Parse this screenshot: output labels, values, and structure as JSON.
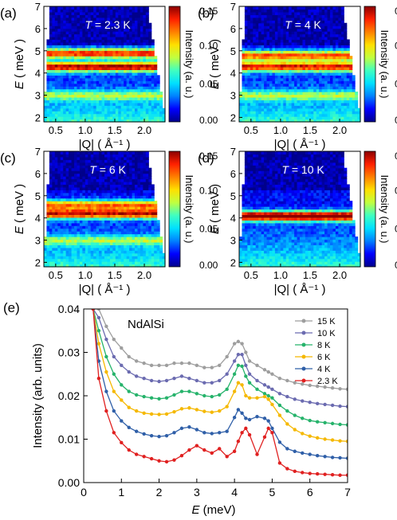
{
  "figure": {
    "heatmap_panels": [
      {
        "label": "(a)",
        "temperature": "2.3 K"
      },
      {
        "label": "(b)",
        "temperature": "4 K"
      },
      {
        "label": "(c)",
        "temperature": "6 K"
      },
      {
        "label": "(d)",
        "temperature": "10 K"
      }
    ],
    "heatmap_common": {
      "temperature_symbol": "T",
      "y_axis_symbol": "E",
      "y_axis_unit": " ( meV )",
      "x_axis_label": "|Q| ( Å⁻¹ )",
      "y_ticks": [
        "2",
        "3",
        "4",
        "5",
        "6",
        "7"
      ],
      "x_ticks": [
        "0.5",
        "1.0",
        "1.5",
        "2.0"
      ],
      "colorbar_label": "Intensity (a. u.)",
      "colorbar_ticks": [
        "0.15",
        "0.10",
        "0.05",
        "0.00"
      ],
      "colorscale": [
        "#00008b",
        "#0000ff",
        "#0080ff",
        "#00e0ff",
        "#40ffc0",
        "#c0ff40",
        "#ffe000",
        "#ff8000",
        "#ff2000",
        "#8b0000"
      ]
    },
    "line_panel": {
      "label": "(e)",
      "sample": "NdAlSi",
      "x_axis_symbol": "E",
      "x_axis_unit": " (meV)",
      "y_axis_label": "Intensity (arb. units)",
      "x_ticks": [
        "0",
        "1",
        "2",
        "3",
        "4",
        "5",
        "6",
        "7"
      ],
      "y_ticks": [
        "0.00",
        "0.01",
        "0.02",
        "0.03",
        "0.04"
      ]
    }
  },
  "chart_data": [
    {
      "type": "heatmap",
      "title": "T = 2.3 K",
      "xlabel": "|Q| ( Å⁻¹ )",
      "ylabel": "E ( meV )",
      "xlim": [
        0.3,
        2.35
      ],
      "ylim": [
        1.8,
        7.0
      ],
      "zlim": [
        0.0,
        0.15
      ],
      "bands": [
        {
          "E": 4.3,
          "intensity": 0.13
        },
        {
          "E": 4.9,
          "intensity": 0.12
        },
        {
          "E": 3.0,
          "intensity": 0.05
        }
      ]
    },
    {
      "type": "heatmap",
      "title": "T = 4 K",
      "xlabel": "|Q| ( Å⁻¹ )",
      "ylabel": "E ( meV )",
      "xlim": [
        0.3,
        2.35
      ],
      "ylim": [
        1.8,
        7.0
      ],
      "zlim": [
        0.0,
        0.15
      ],
      "bands": [
        {
          "E": 4.3,
          "intensity": 0.12
        },
        {
          "E": 4.8,
          "intensity": 0.11
        },
        {
          "E": 3.0,
          "intensity": 0.05
        }
      ]
    },
    {
      "type": "heatmap",
      "title": "T = 6 K",
      "xlabel": "|Q| ( Å⁻¹ )",
      "ylabel": "E ( meV )",
      "xlim": [
        0.3,
        2.35
      ],
      "ylim": [
        1.8,
        7.0
      ],
      "zlim": [
        0.0,
        0.15
      ],
      "bands": [
        {
          "E": 4.2,
          "intensity": 0.12
        },
        {
          "E": 4.6,
          "intensity": 0.1
        },
        {
          "E": 3.0,
          "intensity": 0.05
        }
      ]
    },
    {
      "type": "heatmap",
      "title": "T = 10 K",
      "xlabel": "|Q| ( Å⁻¹ )",
      "ylabel": "E ( meV )",
      "xlim": [
        0.3,
        2.35
      ],
      "ylim": [
        1.8,
        7.0
      ],
      "zlim": [
        0.0,
        0.15
      ],
      "bands": [
        {
          "E": 4.1,
          "intensity": 0.15
        }
      ]
    },
    {
      "type": "line",
      "title": "NdAlSi",
      "xlabel": "E (meV)",
      "ylabel": "Intensity (arb. units)",
      "xlim": [
        0,
        7
      ],
      "ylim": [
        0,
        0.04
      ],
      "legend": "top-right",
      "x": [
        0.25,
        0.4,
        0.6,
        0.8,
        1.0,
        1.2,
        1.4,
        1.6,
        1.8,
        2.0,
        2.2,
        2.4,
        2.6,
        2.8,
        3.0,
        3.2,
        3.4,
        3.6,
        3.8,
        4.0,
        4.1,
        4.2,
        4.3,
        4.4,
        4.6,
        4.8,
        4.9,
        5.0,
        5.2,
        5.4,
        5.6,
        5.8,
        6.0,
        6.2,
        6.4,
        6.6,
        6.8,
        7.0
      ],
      "series": [
        {
          "name": "15 K",
          "color": "#9e9e9e",
          "values": [
            0.04,
            0.04,
            0.036,
            0.033,
            0.031,
            0.029,
            0.028,
            0.0275,
            0.027,
            0.027,
            0.027,
            0.0275,
            0.0275,
            0.0275,
            0.027,
            0.0265,
            0.0265,
            0.027,
            0.029,
            0.032,
            0.0325,
            0.032,
            0.03,
            0.028,
            0.027,
            0.026,
            0.0255,
            0.025,
            0.024,
            0.0235,
            0.023,
            0.0227,
            0.0224,
            0.0222,
            0.022,
            0.0218,
            0.0216,
            0.0215
          ]
        },
        {
          "name": "10 K",
          "color": "#6b6bb0",
          "values": [
            0.04,
            0.038,
            0.033,
            0.029,
            0.027,
            0.0255,
            0.0245,
            0.024,
            0.0235,
            0.0233,
            0.0235,
            0.024,
            0.0245,
            0.024,
            0.0235,
            0.023,
            0.023,
            0.0235,
            0.025,
            0.028,
            0.0295,
            0.0295,
            0.027,
            0.025,
            0.0235,
            0.0225,
            0.022,
            0.0215,
            0.0205,
            0.0198,
            0.0192,
            0.0188,
            0.0185,
            0.0182,
            0.018,
            0.0178,
            0.0176,
            0.0175
          ]
        },
        {
          "name": "8 K",
          "color": "#26b36b",
          "values": [
            0.04,
            0.035,
            0.029,
            0.025,
            0.0225,
            0.021,
            0.0202,
            0.0198,
            0.0195,
            0.0193,
            0.0195,
            0.0202,
            0.021,
            0.021,
            0.0205,
            0.02,
            0.0198,
            0.0202,
            0.0215,
            0.025,
            0.027,
            0.0268,
            0.0245,
            0.023,
            0.0215,
            0.0205,
            0.02,
            0.0195,
            0.0178,
            0.0165,
            0.0155,
            0.0148,
            0.0143,
            0.014,
            0.0138,
            0.0136,
            0.0134,
            0.0133
          ]
        },
        {
          "name": "6 K",
          "color": "#f5b800",
          "values": [
            0.04,
            0.032,
            0.0255,
            0.021,
            0.019,
            0.0173,
            0.0165,
            0.016,
            0.0158,
            0.0157,
            0.0158,
            0.0163,
            0.017,
            0.0172,
            0.0168,
            0.0164,
            0.0162,
            0.0165,
            0.0175,
            0.021,
            0.023,
            0.0225,
            0.02,
            0.0195,
            0.0195,
            0.0198,
            0.0192,
            0.018,
            0.0155,
            0.0135,
            0.0122,
            0.0113,
            0.0107,
            0.0103,
            0.01,
            0.0098,
            0.0096,
            0.0095
          ]
        },
        {
          "name": "4 K",
          "color": "#2f5fa8",
          "values": [
            0.04,
            0.028,
            0.021,
            0.0165,
            0.0142,
            0.0127,
            0.0118,
            0.0112,
            0.0108,
            0.0106,
            0.0108,
            0.0115,
            0.0125,
            0.0128,
            0.0122,
            0.0115,
            0.0113,
            0.0115,
            0.0118,
            0.015,
            0.0168,
            0.016,
            0.0148,
            0.0145,
            0.0152,
            0.0148,
            0.0142,
            0.0125,
            0.0093,
            0.0078,
            0.0072,
            0.0068,
            0.0065,
            0.0062,
            0.006,
            0.0058,
            0.0057,
            0.0056
          ]
        },
        {
          "name": "2.3 K",
          "color": "#e02020",
          "values": [
            0.04,
            0.024,
            0.0165,
            0.0115,
            0.0092,
            0.0075,
            0.0065,
            0.006,
            0.0055,
            0.005,
            0.0048,
            0.0052,
            0.0062,
            0.0075,
            0.0085,
            0.0075,
            0.0068,
            0.0078,
            0.006,
            0.0072,
            0.0095,
            0.0115,
            0.0125,
            0.011,
            0.0065,
            0.0105,
            0.0125,
            0.0115,
            0.0045,
            0.0032,
            0.0026,
            0.0023,
            0.0021,
            0.002,
            0.0019,
            0.0018,
            0.0017,
            0.0017
          ]
        }
      ]
    }
  ]
}
